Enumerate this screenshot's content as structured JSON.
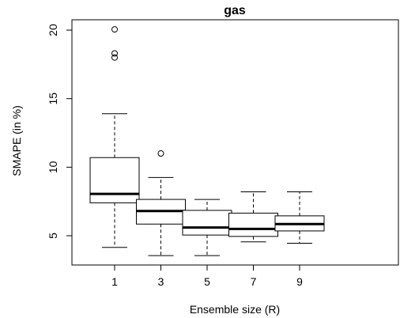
{
  "chart_data": {
    "type": "boxplot",
    "title": "gas",
    "xlabel": "Ensemble size (R)",
    "ylabel": "SMAPE (in %)",
    "categories": [
      "1",
      "3",
      "5",
      "7",
      "9"
    ],
    "ylim": [
      3,
      21
    ],
    "yticks": [
      "5",
      "10",
      "15",
      "20"
    ],
    "grid": false,
    "legend": "none",
    "boxes": [
      {
        "category": "1",
        "whisker_low": 4.15,
        "q1": 7.4,
        "median": 8.05,
        "q3": 10.7,
        "whisker_high": 13.9,
        "outliers": [
          18.0,
          18.3,
          20.05
        ]
      },
      {
        "category": "3",
        "whisker_low": 3.55,
        "q1": 5.85,
        "median": 6.8,
        "q3": 7.65,
        "whisker_high": 9.25,
        "outliers": [
          11.0
        ]
      },
      {
        "category": "5",
        "whisker_low": 3.55,
        "q1": 5.05,
        "median": 5.6,
        "q3": 6.85,
        "whisker_high": 7.65,
        "outliers": []
      },
      {
        "category": "7",
        "whisker_low": 4.55,
        "q1": 4.95,
        "median": 5.5,
        "q3": 6.65,
        "whisker_high": 8.2,
        "outliers": []
      },
      {
        "category": "9",
        "whisker_low": 4.45,
        "q1": 5.35,
        "median": 5.85,
        "q3": 6.45,
        "whisker_high": 8.2,
        "outliers": []
      }
    ]
  }
}
